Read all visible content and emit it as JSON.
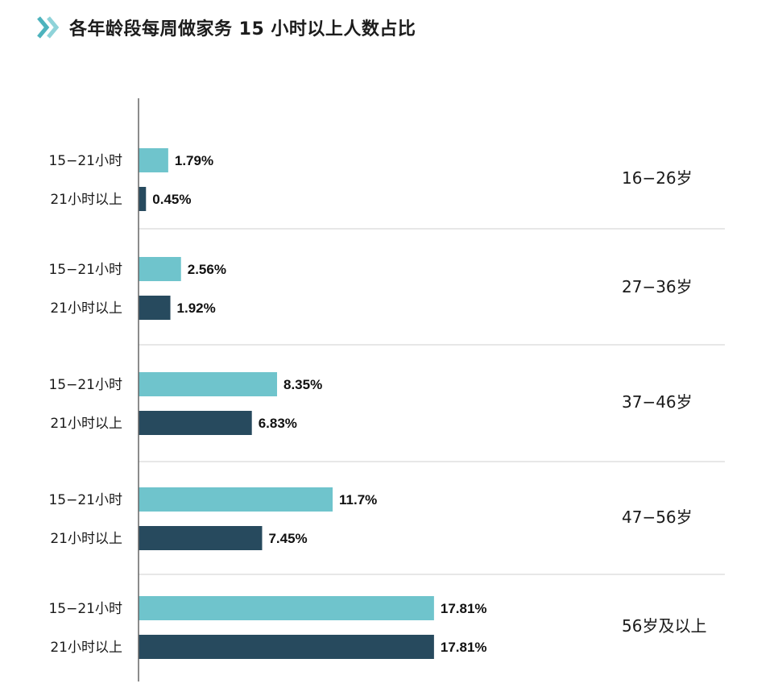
{
  "title": "各年龄段每周做家务 15 小时以上人数占比",
  "icon": "double-chevron-right-icon",
  "colors": {
    "series_light": "#6fc4cc",
    "series_dark": "#274a5e",
    "accent": "#4db3bd"
  },
  "chart_data": {
    "type": "bar",
    "orientation": "horizontal",
    "title": "各年龄段每周做家务 15 小时以上人数占比",
    "xlabel": "",
    "ylabel": "",
    "xlim": [
      0,
      19.5
    ],
    "grid": false,
    "legend": "none",
    "groups": [
      {
        "label": "16−26岁",
        "bars": [
          {
            "category": "15−21小时",
            "value": 1.79,
            "label": "1.79%"
          },
          {
            "category": "21小时以上",
            "value": 0.45,
            "label": "0.45%"
          }
        ]
      },
      {
        "label": "27−36岁",
        "bars": [
          {
            "category": "15−21小时",
            "value": 2.56,
            "label": "2.56%"
          },
          {
            "category": "21小时以上",
            "value": 1.92,
            "label": "1.92%"
          }
        ]
      },
      {
        "label": "37−46岁",
        "bars": [
          {
            "category": "15−21小时",
            "value": 8.35,
            "label": "8.35%"
          },
          {
            "category": "21小时以上",
            "value": 6.83,
            "label": "6.83%"
          }
        ]
      },
      {
        "label": "47−56岁",
        "bars": [
          {
            "category": "15−21小时",
            "value": 11.7,
            "label": "11.7%"
          },
          {
            "category": "21小时以上",
            "value": 7.45,
            "label": "7.45%"
          }
        ]
      },
      {
        "label": "56岁及以上",
        "bars": [
          {
            "category": "15−21小时",
            "value": 17.81,
            "label": "17.81%"
          },
          {
            "category": "21小时以上",
            "value": 17.81,
            "label": "17.81%"
          }
        ]
      }
    ]
  }
}
